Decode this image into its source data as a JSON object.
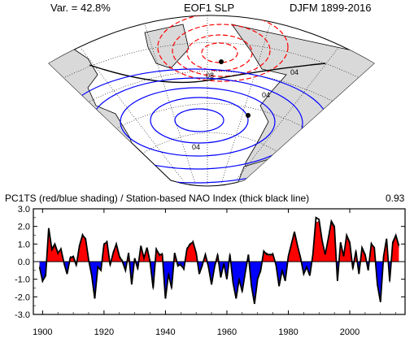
{
  "map": {
    "top_left": "Var. = 42.8%",
    "top_center": "EOF1 SLP",
    "top_right": "DJFM 1899-2016",
    "contour_labels": [
      "08",
      "04",
      "04",
      "04"
    ]
  },
  "chart_data": {
    "type": "area",
    "title": "PC1TS (red/blue shading) / Station-based NAO Index (thick black line)",
    "correlation": "0.93",
    "xlim": [
      1897,
      2018
    ],
    "ylim": [
      -3.0,
      3.0
    ],
    "xticks": [
      "1900",
      "1920",
      "1940",
      "1960",
      "1980",
      "2000"
    ],
    "yticks": [
      "3.0",
      "2.0",
      "1.0",
      "0.0",
      "-1.0",
      "-2.0",
      "-3.0"
    ],
    "x": [
      1899,
      1900,
      1901,
      1902,
      1903,
      1904,
      1905,
      1906,
      1907,
      1908,
      1909,
      1910,
      1911,
      1912,
      1913,
      1914,
      1915,
      1916,
      1917,
      1918,
      1919,
      1920,
      1921,
      1922,
      1923,
      1924,
      1925,
      1926,
      1927,
      1928,
      1929,
      1930,
      1931,
      1932,
      1933,
      1934,
      1935,
      1936,
      1937,
      1938,
      1939,
      1940,
      1941,
      1942,
      1943,
      1944,
      1945,
      1946,
      1947,
      1948,
      1949,
      1950,
      1951,
      1952,
      1953,
      1954,
      1955,
      1956,
      1957,
      1958,
      1959,
      1960,
      1961,
      1962,
      1963,
      1964,
      1965,
      1966,
      1967,
      1968,
      1969,
      1970,
      1971,
      1972,
      1973,
      1974,
      1975,
      1976,
      1977,
      1978,
      1979,
      1980,
      1981,
      1982,
      1983,
      1984,
      1985,
      1986,
      1987,
      1988,
      1989,
      1990,
      1991,
      1992,
      1993,
      1994,
      1995,
      1996,
      1997,
      1998,
      1999,
      2000,
      2001,
      2002,
      2003,
      2004,
      2005,
      2006,
      2007,
      2008,
      2009,
      2010,
      2011,
      2012,
      2013,
      2014,
      2015,
      2016
    ],
    "series": [
      {
        "name": "PC1TS",
        "values": [
          -0.2,
          -1.2,
          -0.6,
          1.8,
          0.6,
          0.9,
          0.4,
          0.8,
          -0.2,
          -0.6,
          0.3,
          0.2,
          -0.3,
          0.8,
          1.6,
          1.2,
          0.2,
          -0.7,
          -2.0,
          -0.4,
          -0.4,
          0.9,
          1.2,
          -0.3,
          0.6,
          0.9,
          0.2,
          0.1,
          -0.4,
          0.4,
          -1.2,
          0.1,
          -0.5,
          0.8,
          0.3,
          0.7,
          -0.1,
          -1.6,
          0.8,
          0.3,
          0.5,
          -2.0,
          -0.6,
          -1.6,
          0.4,
          -0.3,
          -0.1,
          -0.5,
          0.8,
          0.9,
          1.2,
          0.4,
          -0.6,
          -0.3,
          0.5,
          -0.2,
          -1.2,
          -0.4,
          0.5,
          -0.8,
          -0.2,
          -0.9,
          0.5,
          -1.1,
          -2.0,
          -0.9,
          -1.8,
          -0.5,
          0.3,
          -1.3,
          -2.2,
          -0.9,
          -0.6,
          0.5,
          0.5,
          0.3,
          0.5,
          -0.3,
          -1.3,
          -0.4,
          -1.0,
          0.4,
          1.1,
          1.6,
          0.8,
          0.3,
          -0.6,
          -0.4,
          -0.7,
          0.5,
          2.2,
          2.3,
          1.1,
          0.5,
          1.2,
          2.2,
          1.9,
          -1.0,
          1.0,
          0.4,
          1.4,
          1.0,
          -0.5,
          0.7,
          -0.6,
          0.7,
          0.3,
          -0.4,
          1.1,
          0.7,
          -1.2,
          -2.2,
          0.2,
          1.2,
          -1.2,
          1.0,
          1.4,
          0.8
        ],
        "colors": {
          "positive": "#ff0000",
          "negative": "#0000ff"
        }
      },
      {
        "name": "Station-based NAO Index",
        "values": [
          -0.3,
          -1.1,
          -0.8,
          1.9,
          0.7,
          1.0,
          0.5,
          0.7,
          -0.1,
          -0.7,
          0.2,
          0.3,
          -0.2,
          0.9,
          1.5,
          1.3,
          0.1,
          -0.8,
          -2.1,
          -0.3,
          -0.5,
          1.0,
          1.1,
          -0.2,
          0.5,
          1.0,
          0.3,
          0.0,
          -0.5,
          0.5,
          -1.3,
          0.2,
          -0.4,
          0.9,
          0.2,
          0.8,
          0.0,
          -1.5,
          0.7,
          0.4,
          0.4,
          -2.1,
          -0.7,
          -1.5,
          0.5,
          -0.2,
          -0.2,
          -0.4,
          0.7,
          1.0,
          1.1,
          0.5,
          -0.7,
          -0.2,
          0.4,
          -0.3,
          -1.3,
          -0.3,
          0.4,
          -0.9,
          -0.1,
          -1.0,
          0.4,
          -1.2,
          -2.1,
          -1.0,
          -1.7,
          -0.6,
          0.4,
          -1.4,
          -2.4,
          -1.0,
          -0.5,
          0.6,
          0.4,
          0.4,
          0.4,
          -0.2,
          -1.4,
          -0.5,
          -1.1,
          0.3,
          1.0,
          1.7,
          0.9,
          0.2,
          -0.7,
          -0.3,
          -0.8,
          0.4,
          2.5,
          2.4,
          1.2,
          0.4,
          1.3,
          2.3,
          2.0,
          -1.1,
          1.1,
          0.3,
          1.5,
          1.1,
          -0.4,
          0.6,
          -0.7,
          0.8,
          0.4,
          -0.5,
          1.0,
          0.8,
          -1.3,
          -2.3,
          0.3,
          1.3,
          -1.1,
          1.1,
          1.5,
          0.9
        ],
        "color": "#000000"
      }
    ]
  }
}
